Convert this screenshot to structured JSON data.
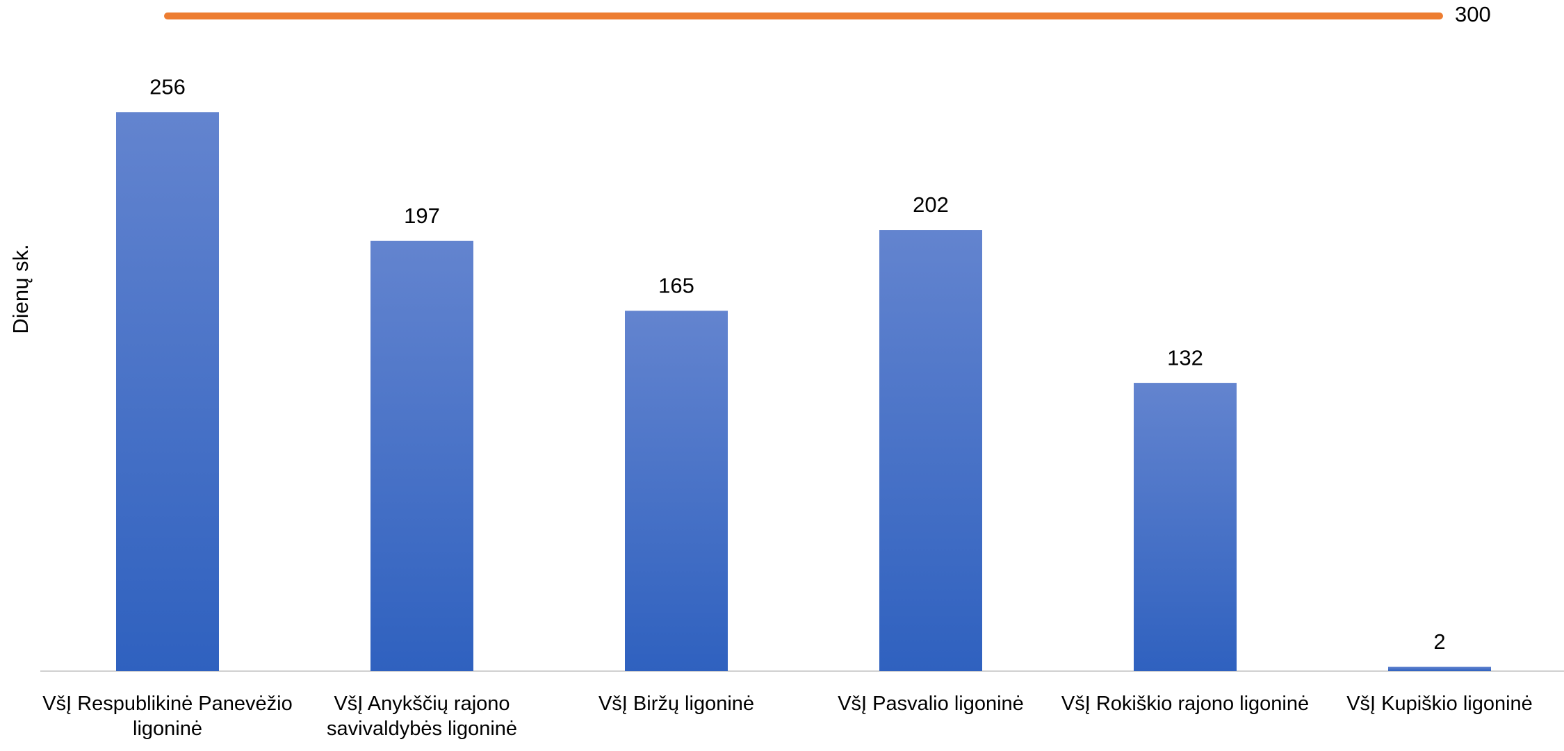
{
  "chart_data": {
    "type": "bar",
    "y_label": "Dienų sk.",
    "categories": [
      "VšĮ Respublikinė Panevėžio ligoninė",
      "VšĮ Anykščių rajono savivaldybės ligoninė",
      "VšĮ Biržų ligoninė",
      "VšĮ Pasvalio ligoninė",
      "VšĮ Rokiškio rajono ligoninė",
      "VšĮ Kupiškio ligoninė"
    ],
    "values": [
      256,
      197,
      165,
      202,
      132,
      2
    ],
    "color": "#4472c4",
    "ylim": [
      0,
      300
    ],
    "reference_line": {
      "value": 300,
      "color": "#ed7d31"
    }
  }
}
